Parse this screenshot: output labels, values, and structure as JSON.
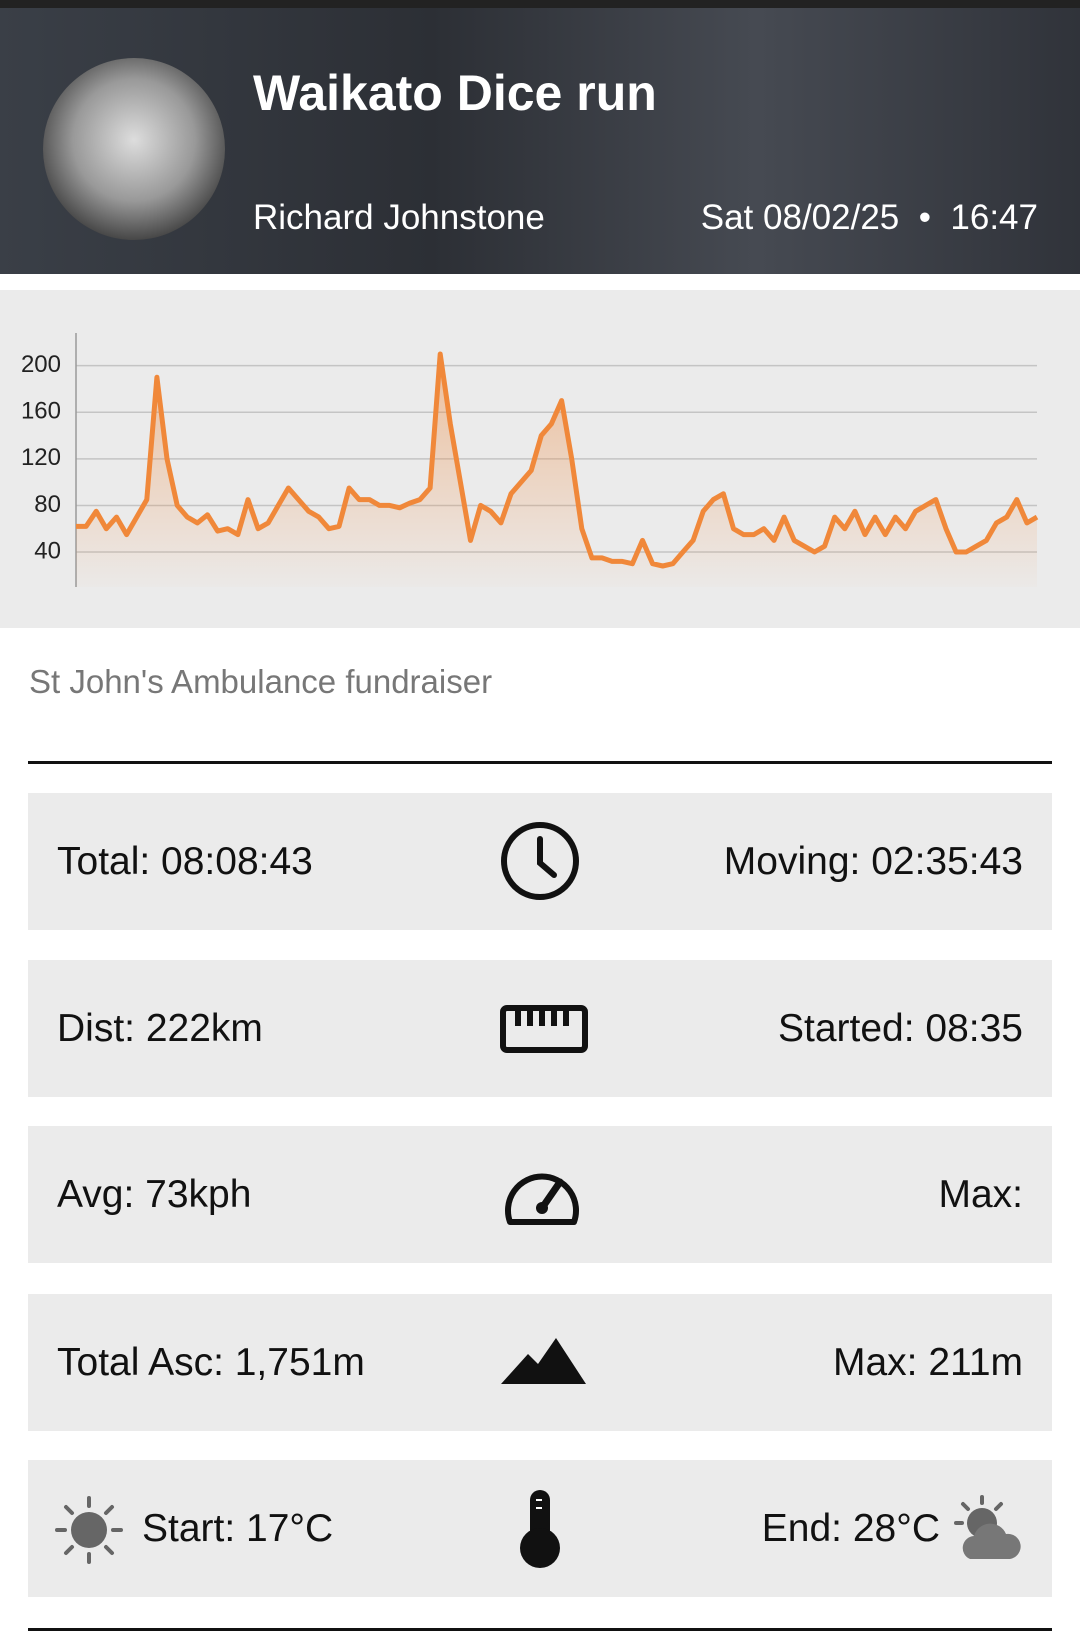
{
  "header": {
    "title": "Waikato Dice run",
    "author": "Richard Johnstone",
    "date": "Sat 08/02/25",
    "time": "16:47"
  },
  "chart_data": {
    "type": "line",
    "color": "#f0883a",
    "grid": true,
    "ylim": [
      10,
      228
    ],
    "yticks": [
      40,
      80,
      120,
      160,
      200
    ],
    "values": [
      62,
      62,
      75,
      60,
      70,
      55,
      70,
      85,
      190,
      120,
      80,
      70,
      65,
      72,
      58,
      60,
      55,
      85,
      60,
      65,
      80,
      95,
      85,
      75,
      70,
      60,
      62,
      95,
      85,
      85,
      80,
      80,
      78,
      82,
      85,
      95,
      210,
      150,
      100,
      50,
      80,
      75,
      65,
      90,
      100,
      110,
      140,
      150,
      170,
      120,
      60,
      35,
      35,
      32,
      32,
      30,
      50,
      30,
      28,
      30,
      40,
      50,
      75,
      85,
      90,
      60,
      55,
      55,
      60,
      50,
      70,
      50,
      45,
      40,
      45,
      70,
      60,
      75,
      55,
      70,
      55,
      70,
      60,
      75,
      80,
      85,
      60,
      40,
      40,
      45,
      50,
      65,
      70,
      85,
      65,
      70
    ]
  },
  "description": "St John's Ambulance fundraiser",
  "stats": [
    {
      "left": "Total: 08:08:43",
      "right": "Moving: 02:35:43"
    },
    {
      "left": "Dist: 222km",
      "right": "Started: 08:35"
    },
    {
      "left": "Avg: 73kph",
      "right": "Max:"
    },
    {
      "left": "Total Asc: 1,751m",
      "right": "Max: 211m"
    },
    {
      "left": "Start: 17°C",
      "right": "End: 28°C"
    }
  ]
}
